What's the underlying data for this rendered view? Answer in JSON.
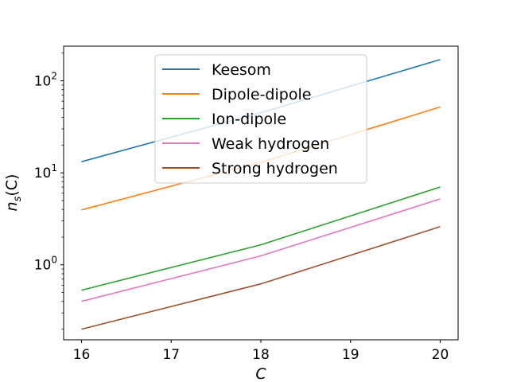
{
  "chart_data": {
    "type": "line",
    "xlabel_base": "C",
    "ylabel_base": "n",
    "ylabel_sub": "s",
    "ylabel_tail": "(C)",
    "x_ticks": [
      16,
      17,
      18,
      19,
      20
    ],
    "y_scale": "log",
    "y_ticks": [
      {
        "value": 1,
        "base": "10",
        "exp": "0"
      },
      {
        "value": 10,
        "base": "10",
        "exp": "1"
      },
      {
        "value": 100,
        "base": "10",
        "exp": "2"
      }
    ],
    "xlim": [
      15.8,
      20.2
    ],
    "ylim": [
      0.153,
      238
    ],
    "legend_position": "upper center",
    "grid": false,
    "series": [
      {
        "name": "Keesom",
        "color": "#1f77b4",
        "x": [
          16,
          18,
          20
        ],
        "y": [
          13.2,
          45,
          170
        ]
      },
      {
        "name": "Dipole-dipole",
        "color": "#ff7f0e",
        "x": [
          16,
          18,
          20
        ],
        "y": [
          3.95,
          13.0,
          52
        ]
      },
      {
        "name": "Ion-dipole",
        "color": "#2ca02c",
        "x": [
          16,
          18,
          20
        ],
        "y": [
          0.53,
          1.65,
          7.0
        ]
      },
      {
        "name": "Weak hydrogen",
        "color": "#e377c2",
        "x": [
          16,
          18,
          20
        ],
        "y": [
          0.4,
          1.25,
          5.2
        ]
      },
      {
        "name": "Strong hydrogen",
        "color": "#a0522d",
        "x": [
          16,
          18,
          20
        ],
        "y": [
          0.2,
          0.62,
          2.6
        ]
      }
    ]
  }
}
